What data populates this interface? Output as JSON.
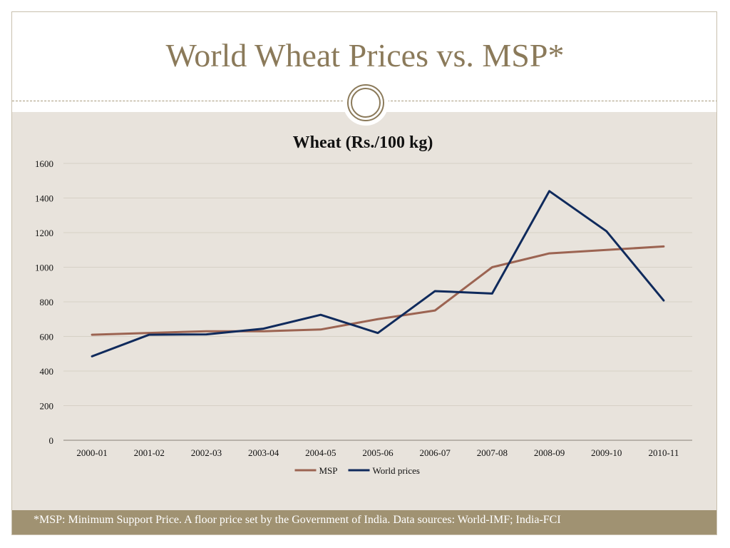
{
  "slide": {
    "title": "World Wheat Prices vs. MSP*",
    "footnote": "*MSP: Minimum Support Price. A floor price set by the Government of India. Data sources: World-IMF; India-FCI"
  },
  "colors": {
    "title": "#8b7a5a",
    "content_bg": "#e8e3dc",
    "footer_bg": "#a09272",
    "msp": "#9c6452",
    "world": "#0f2a5c"
  },
  "chart_data": {
    "type": "line",
    "title": "Wheat (Rs./100 kg)",
    "categories": [
      "2000-01",
      "2001-02",
      "2002-03",
      "2003-04",
      "2004-05",
      "2005-06",
      "2006-07",
      "2007-08",
      "2008-09",
      "2009-10",
      "2010-11"
    ],
    "series": [
      {
        "name": "MSP",
        "color": "#9c6452",
        "values": [
          610,
          620,
          630,
          630,
          640,
          700,
          750,
          1000,
          1080,
          1100,
          1120
        ]
      },
      {
        "name": "World prices",
        "color": "#0f2a5c",
        "values": [
          485,
          610,
          612,
          645,
          725,
          620,
          862,
          848,
          1440,
          1208,
          808
        ]
      }
    ],
    "ylim": [
      0,
      1600
    ],
    "yticks": [
      0,
      200,
      400,
      600,
      800,
      1000,
      1200,
      1400,
      1600
    ],
    "grid": true,
    "legend_position": "bottom"
  }
}
